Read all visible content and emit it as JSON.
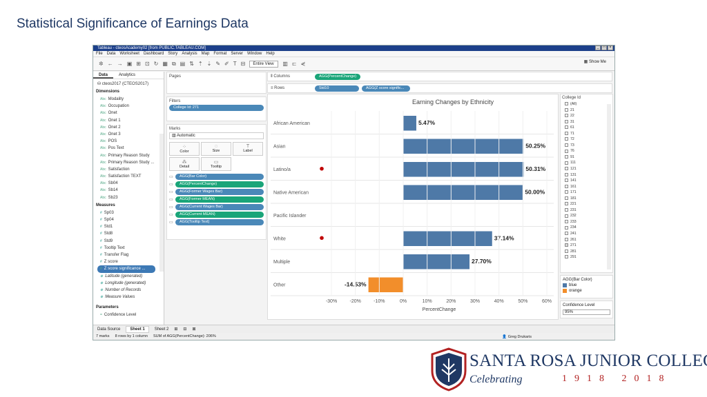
{
  "slide_title": "Statistical Significance of Earnings Data",
  "window": {
    "title": "Tableau - cteosAcademy02 [from PUBLIC.TABLEAU.COM]",
    "menu": [
      "File",
      "Data",
      "Worksheet",
      "Dashboard",
      "Story",
      "Analysis",
      "Map",
      "Format",
      "Server",
      "Window",
      "Help"
    ],
    "fit_select": "Entire View",
    "show_me": "Show Me"
  },
  "left": {
    "tabs": [
      "Data",
      "Analytics"
    ],
    "source": "cteos2017 (CTEOS2017)",
    "dimensions_label": "Dimensions",
    "dimensions": [
      "Modality",
      "Occupation",
      "Onet",
      "Onet 1",
      "Onet 2",
      "Onet 3",
      "POS",
      "Pos Text",
      "Primary Reason Study",
      "Primary Reason Study ...",
      "Satisfaction",
      "Satisfaction TEXT",
      "Sb04",
      "Sb14",
      "Sb23"
    ],
    "measures_label": "Measures",
    "measures": [
      "Sp03",
      "Sp04",
      "Std1",
      "Std8",
      "Std9",
      "Tooltip Text",
      "Transfer Flag",
      "Z score"
    ],
    "measure_selected": "Z score significance ...",
    "generated": [
      "Latitude (generated)",
      "Longitude (generated)",
      "Number of Records",
      "Measure Values"
    ],
    "parameters_label": "Parameters",
    "parameters": [
      "Confidence Level"
    ]
  },
  "mid": {
    "pages_label": "Pages",
    "filters_label": "Filters",
    "filter_pill": "College Id: 271",
    "marks_label": "Marks",
    "marks_type": "Automatic",
    "mark_buttons": [
      "Color",
      "Size",
      "Label",
      "Detail",
      "Tooltip"
    ],
    "mark_pills": [
      "AGG(Bar Color)",
      "AGG(PercentChange)",
      "AGG(Former Wages Bar)",
      "AGG(Former MEAN)",
      "AGG(Current Wages Bar)",
      "AGG(Current MEAN)",
      "AGG(Tooltip Text)"
    ]
  },
  "shelves": {
    "columns_label": "Columns",
    "columns_pill": "AGG(PercentChange)",
    "rows_label": "Rows",
    "rows_pills": [
      "Std10",
      "AGG(Z score signific..."
    ]
  },
  "right": {
    "college_id_label": "College Id",
    "college_ids": [
      "(All)",
      "21",
      "22",
      "31",
      "61",
      "71",
      "72",
      "73",
      "76",
      "91",
      "111",
      "121",
      "131",
      "141",
      "161",
      "171",
      "181",
      "221",
      "231",
      "232",
      "233",
      "234",
      "241",
      "261",
      "271",
      "281",
      "291"
    ],
    "checked_id": "271",
    "legend_label": "AGG(Bar Color)",
    "legend": [
      {
        "label": "blue",
        "color": "#4e79a7"
      },
      {
        "label": "orange",
        "color": "#f28e2b"
      }
    ],
    "confidence_label": "Confidence Level",
    "confidence_value": "95%"
  },
  "bottom": {
    "tabs": [
      "Data Source",
      "Sheet 1",
      "Sheet 2"
    ],
    "status": [
      "7 marks",
      "8 rows by 1 column",
      "SUM of AGG(PercentChange): 206%"
    ],
    "user": "Greg Drukaris"
  },
  "logo": {
    "name": "SANTA ROSA JUNIOR COLLEGE",
    "tagline": "Celebrating",
    "years": "1918 2018"
  },
  "chart_data": {
    "type": "bar",
    "title": "Earning Changes by Ethnicity",
    "xlabel": "PercentChange",
    "categories": [
      "African American",
      "Asian",
      "Latino/a",
      "Native American",
      "Pacific Islander",
      "White",
      "Multiple",
      "Other"
    ],
    "values": [
      5.47,
      50.25,
      50.31,
      50.0,
      null,
      37.14,
      27.7,
      -14.53
    ],
    "labels": [
      "5.47%",
      "50.25%",
      "50.31%",
      "50.00%",
      "",
      "37.14%",
      "27.70%",
      "-14.53%"
    ],
    "colors": [
      "blue",
      "blue",
      "blue",
      "blue",
      "blue",
      "blue",
      "blue",
      "orange"
    ],
    "significant": [
      false,
      false,
      true,
      false,
      false,
      true,
      false,
      false
    ],
    "xticks": [
      "-30%",
      "-20%",
      "-10%",
      "0%",
      "10%",
      "20%",
      "30%",
      "40%",
      "50%",
      "60%"
    ],
    "xlim": [
      -30,
      60
    ],
    "palette": {
      "blue": "#4e79a7",
      "orange": "#f28e2b",
      "marker": "#c00000"
    }
  }
}
